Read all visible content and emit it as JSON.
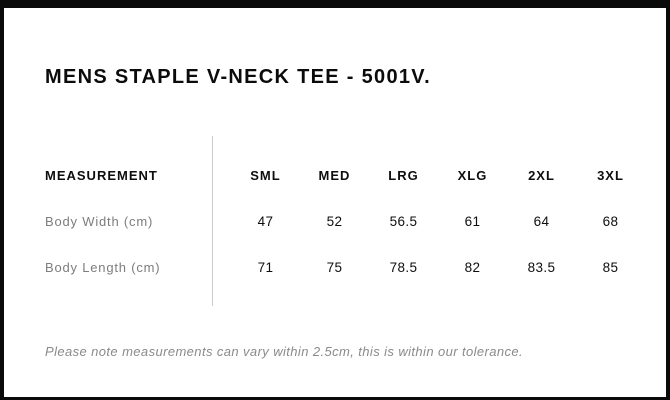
{
  "page": {
    "title": "MENS STAPLE V-NECK TEE - 5001V."
  },
  "size_chart": {
    "label_header": "MEASUREMENT",
    "columns": [
      "SML",
      "MED",
      "LRG",
      "XLG",
      "2XL",
      "3XL"
    ],
    "rows": [
      {
        "label": "Body Width (cm)",
        "values": [
          "47",
          "52",
          "56.5",
          "61",
          "64",
          "68"
        ]
      },
      {
        "label": "Body Length (cm)",
        "values": [
          "71",
          "75",
          "78.5",
          "82",
          "83.5",
          "85"
        ]
      }
    ],
    "divider_color": "#cccccc",
    "frame_color": "#0a0a0a"
  },
  "note": {
    "text": "Please note measurements can vary within 2.5cm, this is within our tolerance."
  }
}
